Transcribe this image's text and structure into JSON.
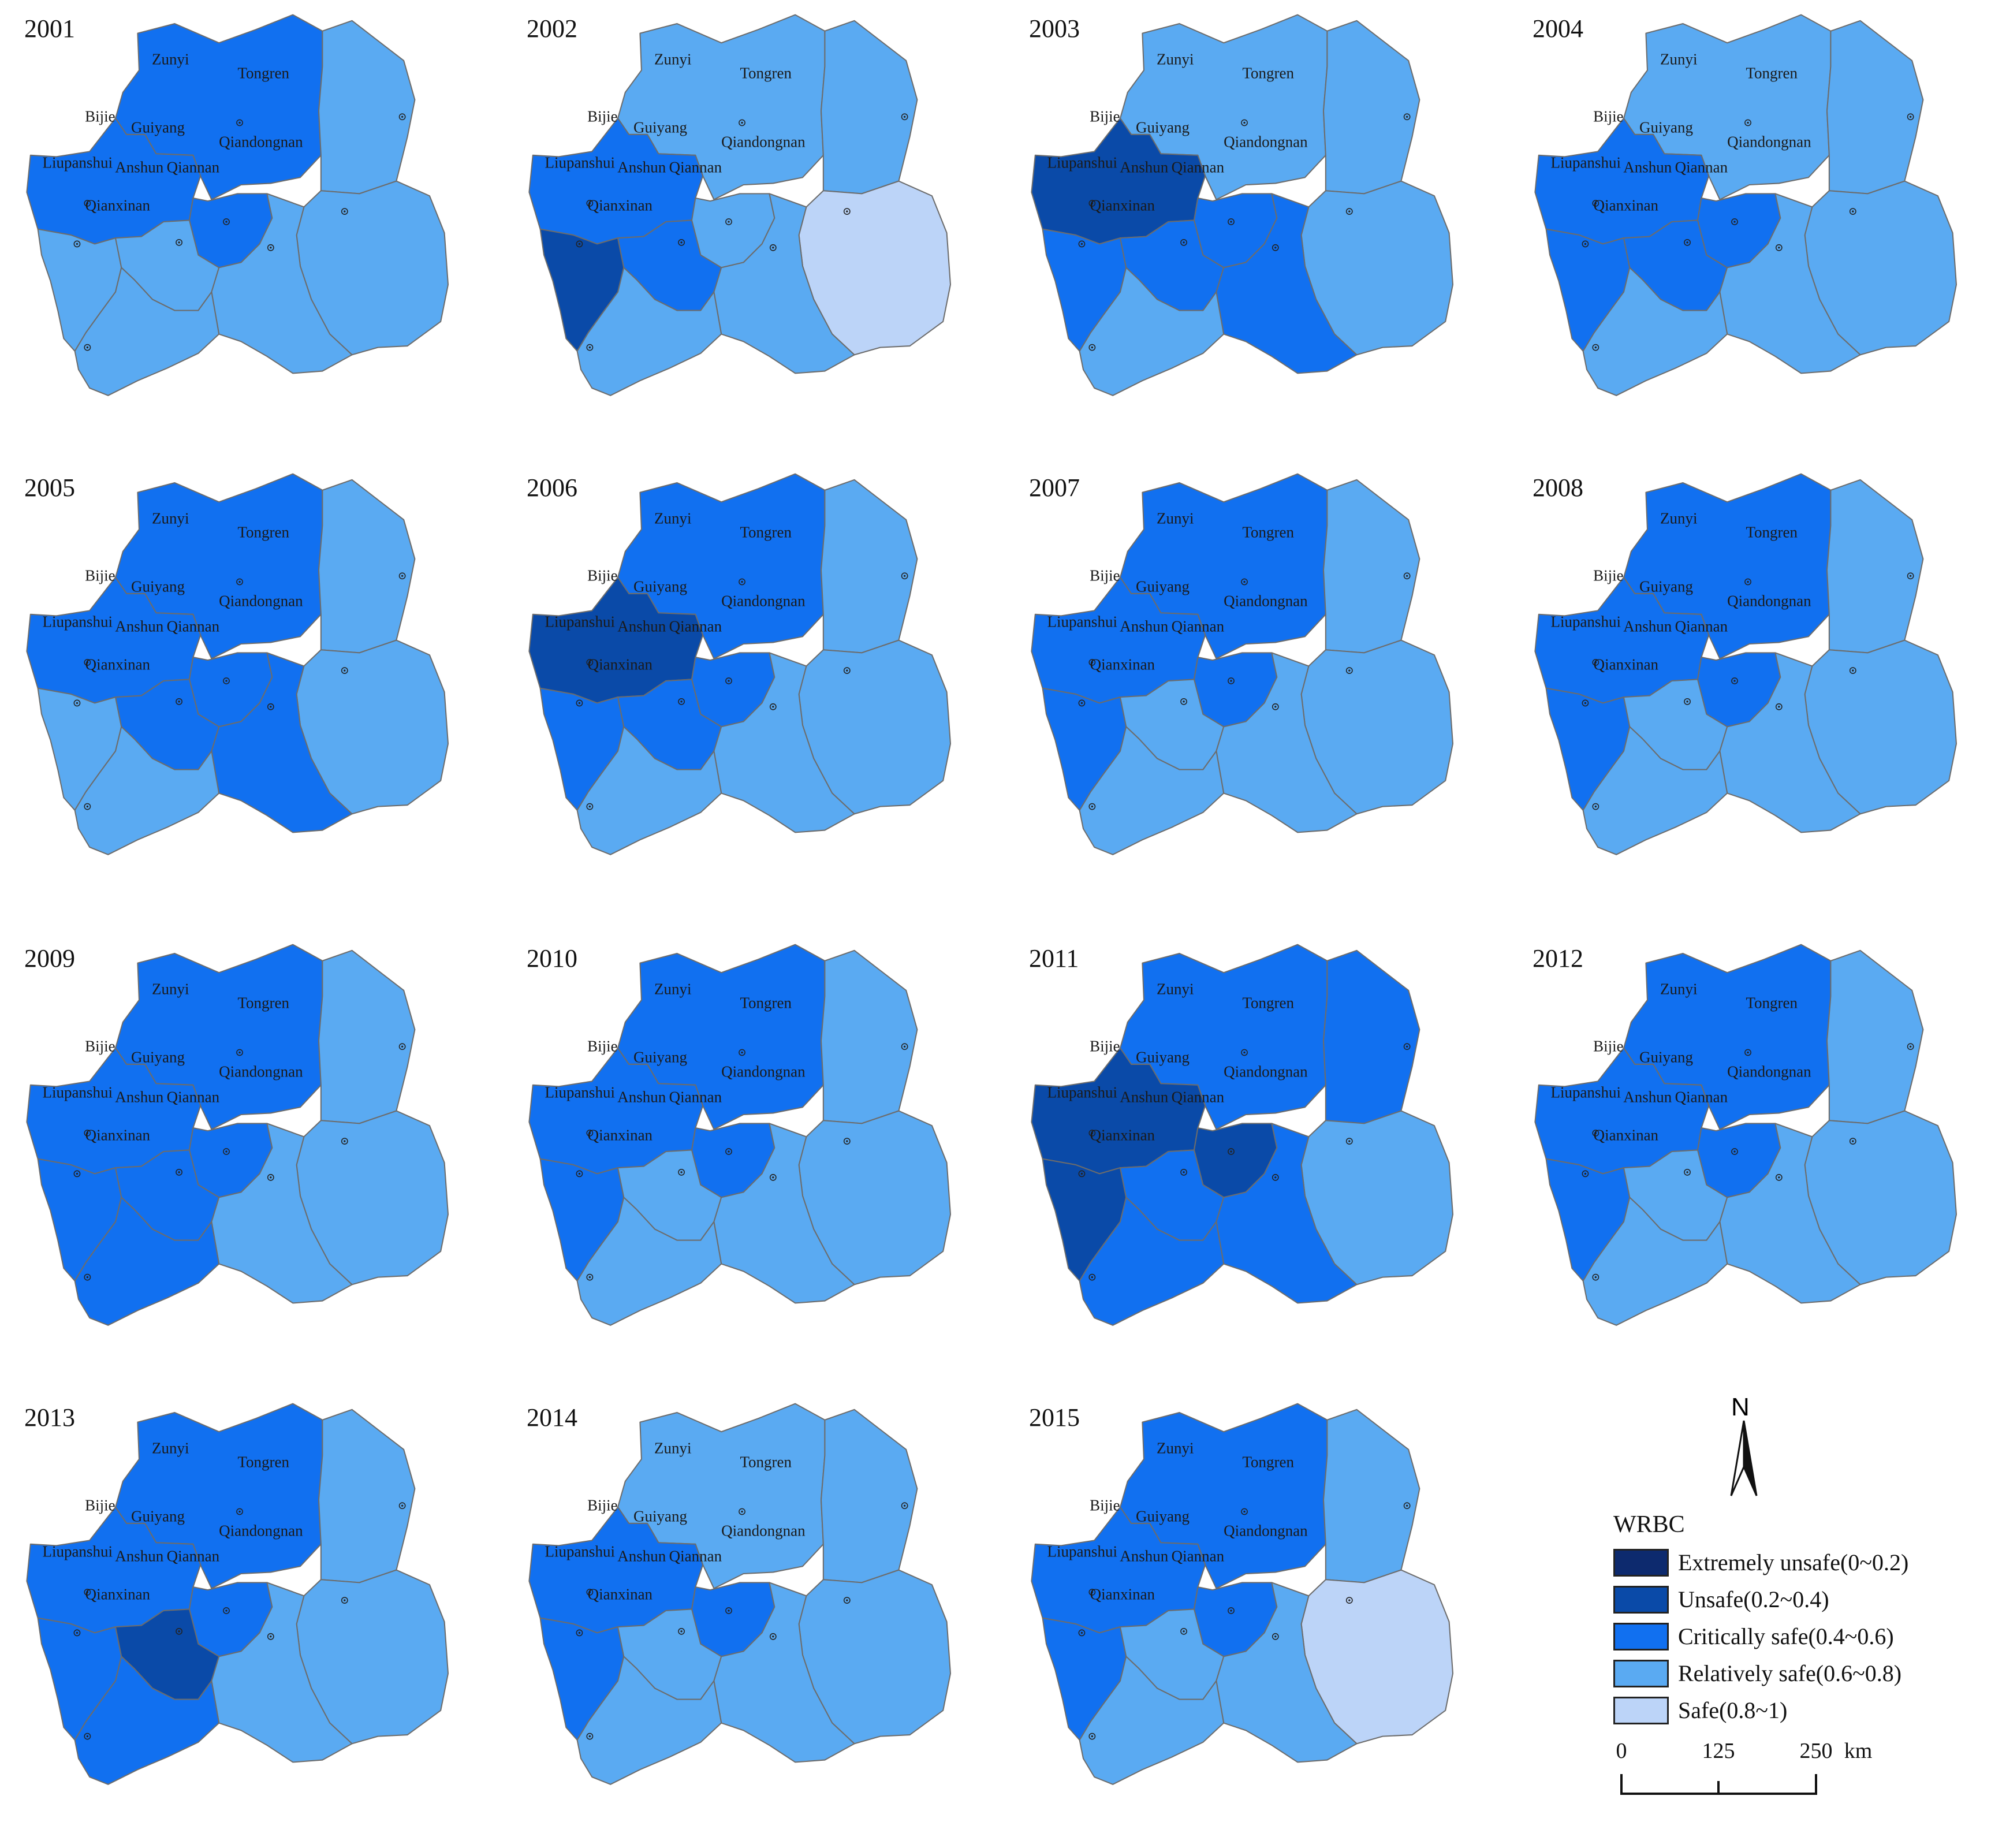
{
  "colors": {
    "Extremely unsafe": "#0d2a6e",
    "Unsafe": "#0a4aa8",
    "Critically safe": "#1170f0",
    "Relatively safe": "#5aaaf2",
    "Safe": "#bcd4f8"
  },
  "region_names": [
    "Zunyi",
    "Tongren",
    "Bijie",
    "Guiyang",
    "Qiandongnan",
    "Liupanshui",
    "Anshun",
    "Qiannan",
    "Qianxinan"
  ],
  "maps": [
    {
      "year": "2001",
      "classes": {
        "Zunyi": "Critically safe",
        "Tongren": "Relatively safe",
        "Bijie": "Critically safe",
        "Guiyang": "Critically safe",
        "Qiandongnan": "Relatively safe",
        "Liupanshui": "Relatively safe",
        "Anshun": "Relatively safe",
        "Qiannan": "Relatively safe",
        "Qianxinan": "Relatively safe"
      }
    },
    {
      "year": "2002",
      "classes": {
        "Zunyi": "Relatively safe",
        "Tongren": "Relatively safe",
        "Bijie": "Critically safe",
        "Guiyang": "Relatively safe",
        "Qiandongnan": "Safe",
        "Liupanshui": "Unsafe",
        "Anshun": "Critically safe",
        "Qiannan": "Relatively safe",
        "Qianxinan": "Relatively safe"
      }
    },
    {
      "year": "2003",
      "classes": {
        "Zunyi": "Relatively safe",
        "Tongren": "Relatively safe",
        "Bijie": "Unsafe",
        "Guiyang": "Critically safe",
        "Qiandongnan": "Relatively safe",
        "Liupanshui": "Critically safe",
        "Anshun": "Critically safe",
        "Qiannan": "Critically safe",
        "Qianxinan": "Relatively safe"
      }
    },
    {
      "year": "2004",
      "classes": {
        "Zunyi": "Relatively safe",
        "Tongren": "Relatively safe",
        "Bijie": "Critically safe",
        "Guiyang": "Critically safe",
        "Qiandongnan": "Relatively safe",
        "Liupanshui": "Critically safe",
        "Anshun": "Critically safe",
        "Qiannan": "Relatively safe",
        "Qianxinan": "Relatively safe"
      }
    },
    {
      "year": "2005",
      "classes": {
        "Zunyi": "Critically safe",
        "Tongren": "Relatively safe",
        "Bijie": "Critically safe",
        "Guiyang": "Critically safe",
        "Qiandongnan": "Relatively safe",
        "Liupanshui": "Relatively safe",
        "Anshun": "Critically safe",
        "Qiannan": "Critically safe",
        "Qianxinan": "Relatively safe"
      }
    },
    {
      "year": "2006",
      "classes": {
        "Zunyi": "Critically safe",
        "Tongren": "Relatively safe",
        "Bijie": "Unsafe",
        "Guiyang": "Critically safe",
        "Qiandongnan": "Relatively safe",
        "Liupanshui": "Critically safe",
        "Anshun": "Critically safe",
        "Qiannan": "Relatively safe",
        "Qianxinan": "Relatively safe"
      }
    },
    {
      "year": "2007",
      "classes": {
        "Zunyi": "Critically safe",
        "Tongren": "Relatively safe",
        "Bijie": "Critically safe",
        "Guiyang": "Critically safe",
        "Qiandongnan": "Relatively safe",
        "Liupanshui": "Critically safe",
        "Anshun": "Relatively safe",
        "Qiannan": "Relatively safe",
        "Qianxinan": "Relatively safe"
      }
    },
    {
      "year": "2008",
      "classes": {
        "Zunyi": "Critically safe",
        "Tongren": "Relatively safe",
        "Bijie": "Critically safe",
        "Guiyang": "Critically safe",
        "Qiandongnan": "Relatively safe",
        "Liupanshui": "Critically safe",
        "Anshun": "Relatively safe",
        "Qiannan": "Relatively safe",
        "Qianxinan": "Relatively safe"
      }
    },
    {
      "year": "2009",
      "classes": {
        "Zunyi": "Critically safe",
        "Tongren": "Relatively safe",
        "Bijie": "Critically safe",
        "Guiyang": "Critically safe",
        "Qiandongnan": "Relatively safe",
        "Liupanshui": "Critically safe",
        "Anshun": "Critically safe",
        "Qiannan": "Relatively safe",
        "Qianxinan": "Critically safe"
      }
    },
    {
      "year": "2010",
      "classes": {
        "Zunyi": "Critically safe",
        "Tongren": "Relatively safe",
        "Bijie": "Critically safe",
        "Guiyang": "Critically safe",
        "Qiandongnan": "Relatively safe",
        "Liupanshui": "Critically safe",
        "Anshun": "Relatively safe",
        "Qiannan": "Relatively safe",
        "Qianxinan": "Relatively safe"
      }
    },
    {
      "year": "2011",
      "classes": {
        "Zunyi": "Critically safe",
        "Tongren": "Critically safe",
        "Bijie": "Unsafe",
        "Guiyang": "Unsafe",
        "Qiandongnan": "Relatively safe",
        "Liupanshui": "Unsafe",
        "Anshun": "Critically safe",
        "Qiannan": "Critically safe",
        "Qianxinan": "Critically safe"
      }
    },
    {
      "year": "2012",
      "classes": {
        "Zunyi": "Critically safe",
        "Tongren": "Relatively safe",
        "Bijie": "Critically safe",
        "Guiyang": "Critically safe",
        "Qiandongnan": "Relatively safe",
        "Liupanshui": "Critically safe",
        "Anshun": "Relatively safe",
        "Qiannan": "Relatively safe",
        "Qianxinan": "Relatively safe"
      }
    },
    {
      "year": "2013",
      "classes": {
        "Zunyi": "Critically safe",
        "Tongren": "Relatively safe",
        "Bijie": "Critically safe",
        "Guiyang": "Critically safe",
        "Qiandongnan": "Relatively safe",
        "Liupanshui": "Critically safe",
        "Anshun": "Unsafe",
        "Qiannan": "Relatively safe",
        "Qianxinan": "Critically safe"
      }
    },
    {
      "year": "2014",
      "classes": {
        "Zunyi": "Relatively safe",
        "Tongren": "Relatively safe",
        "Bijie": "Critically safe",
        "Guiyang": "Critically safe",
        "Qiandongnan": "Relatively safe",
        "Liupanshui": "Critically safe",
        "Anshun": "Relatively safe",
        "Qiannan": "Relatively safe",
        "Qianxinan": "Relatively safe"
      }
    },
    {
      "year": "2015",
      "classes": {
        "Zunyi": "Critically safe",
        "Tongren": "Relatively safe",
        "Bijie": "Critically safe",
        "Guiyang": "Critically safe",
        "Qiandongnan": "Safe",
        "Liupanshui": "Critically safe",
        "Anshun": "Relatively safe",
        "Qiannan": "Relatively safe",
        "Qianxinan": "Relatively safe"
      }
    }
  ],
  "legend": {
    "title": "WRBC",
    "items": [
      {
        "class": "Extremely unsafe",
        "label": "Extremely unsafe(0~0.2)"
      },
      {
        "class": "Unsafe",
        "label": "Unsafe(0.2~0.4)"
      },
      {
        "class": "Critically safe",
        "label": "Critically safe(0.4~0.6)"
      },
      {
        "class": "Relatively safe",
        "label": "Relatively safe(0.6~0.8)"
      },
      {
        "class": "Safe",
        "label": "Safe(0.8~1)"
      }
    ]
  },
  "north_arrow": {
    "label": "N"
  },
  "scale_bar": {
    "ticks": [
      "0",
      "125",
      "250"
    ],
    "unit": "km"
  }
}
